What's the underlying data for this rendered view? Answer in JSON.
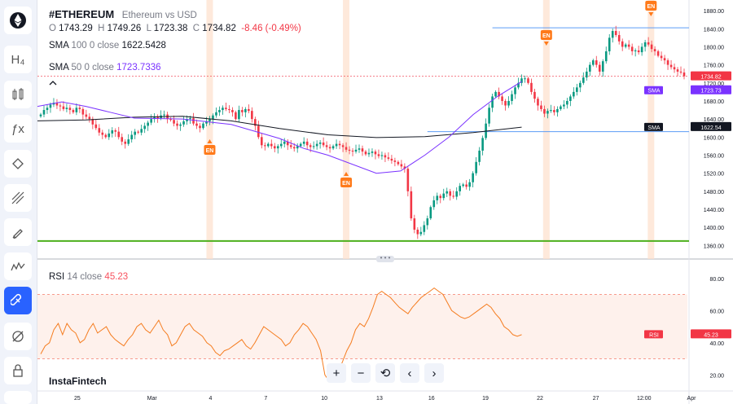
{
  "header": {
    "symbol": "#ETHEREUM",
    "description": "Ethereum vs USD",
    "open_label": "O",
    "open": "1743.29",
    "high_label": "H",
    "high": "1749.26",
    "low_label": "L",
    "low": "1723.38",
    "close_label": "C",
    "close": "1734.82",
    "change": "-8.46 (-0.49%)"
  },
  "indicators": {
    "sma100": {
      "name": "SMA",
      "params": "100 0 close",
      "value": "1622.5428"
    },
    "sma50": {
      "name": "SMA",
      "params": "50 0 close",
      "value": "1723.7336"
    },
    "rsi": {
      "name": "RSI",
      "params": "14 close",
      "value": "45.23"
    }
  },
  "price_tags": {
    "last": "1734.82",
    "sma50_label": "SMA",
    "sma50": "1723.73",
    "sma100_label": "SMA",
    "sma100": "1622.54",
    "rsi_label": "RSI",
    "rsi": "45.23"
  },
  "brand": "InstaFintech",
  "toolbar": {
    "icons": [
      "ethereum-logo-icon",
      "text-tool-icon",
      "indicators-icon",
      "formula-icon",
      "pattern-tool-icon",
      "fib-tool-icon",
      "brush-icon",
      "waves-icon",
      "magnet-icon",
      "eye-off-icon",
      "lock-icon",
      "more-icon"
    ]
  },
  "zoom_controls": {
    "zoom_in": "+",
    "zoom_out": "−",
    "reset": "⟲",
    "prev": "‹",
    "next": "›"
  },
  "colors": {
    "up": "#089981",
    "down": "#f23645",
    "sma100": "#131722",
    "sma50": "#7a32ff",
    "rsi": "#f57c1f",
    "support": "#4caf1d",
    "resistance": "#5b9cf6",
    "event": "#ff7a1a"
  },
  "chart_data": [
    {
      "type": "candlestick",
      "title": "#ETHEREUM Ethereum vs USD",
      "ylim": [
        1330,
        1900
      ],
      "yticks": [
        1360,
        1400,
        1440,
        1480,
        1520,
        1560,
        1600,
        1640,
        1680,
        1720,
        1760,
        1800,
        1840,
        1880
      ],
      "xticks": [
        "25",
        "Mar",
        "4",
        "7",
        "10",
        "13",
        "16",
        "19",
        "22",
        "27",
        "12:00",
        "Apr"
      ],
      "closes": [
        1650,
        1660,
        1665,
        1672,
        1676,
        1670,
        1668,
        1662,
        1665,
        1660,
        1655,
        1665,
        1662,
        1650,
        1645,
        1640,
        1628,
        1620,
        1610,
        1605,
        1600,
        1608,
        1615,
        1612,
        1600,
        1590,
        1585,
        1595,
        1605,
        1612,
        1610,
        1618,
        1625,
        1632,
        1640,
        1645,
        1642,
        1648,
        1650,
        1640,
        1638,
        1630,
        1625,
        1628,
        1635,
        1640,
        1642,
        1630,
        1625,
        1620,
        1630,
        1635,
        1640,
        1648,
        1655,
        1660,
        1665,
        1662,
        1660,
        1655,
        1640,
        1660,
        1655,
        1662,
        1658,
        1640,
        1625,
        1600,
        1582,
        1580,
        1585,
        1580,
        1575,
        1580,
        1585,
        1590,
        1582,
        1578,
        1575,
        1580,
        1585,
        1590,
        1582,
        1578,
        1580,
        1585,
        1588,
        1582,
        1578,
        1575,
        1580,
        1585,
        1582,
        1578,
        1572,
        1570,
        1568,
        1572,
        1575,
        1568,
        1562,
        1565,
        1568,
        1562,
        1558,
        1560,
        1555,
        1552,
        1548,
        1545,
        1540,
        1535,
        1530,
        1480,
        1420,
        1395,
        1385,
        1390,
        1405,
        1420,
        1445,
        1460,
        1470,
        1465,
        1475,
        1480,
        1470,
        1468,
        1480,
        1492,
        1495,
        1490,
        1500,
        1520,
        1545,
        1570,
        1598,
        1630,
        1665,
        1690,
        1700,
        1690,
        1680,
        1670,
        1680,
        1695,
        1710,
        1720,
        1730,
        1730,
        1720,
        1700,
        1685,
        1670,
        1662,
        1652,
        1658,
        1660,
        1655,
        1662,
        1668,
        1672,
        1680,
        1690,
        1700,
        1710,
        1720,
        1732,
        1745,
        1760,
        1770,
        1760,
        1745,
        1768,
        1790,
        1820,
        1835,
        1826,
        1812,
        1800,
        1805,
        1800,
        1790,
        1792,
        1788,
        1800,
        1810,
        1805,
        1795,
        1790,
        1780,
        1775,
        1770,
        1760,
        1755,
        1750,
        1745,
        1743,
        1735
      ],
      "bar_volatility": 12,
      "last": 1734.82,
      "sma_series": [
        {
          "name": "SMA 100",
          "color": "#131722",
          "x": [
            0,
            0.1,
            0.2,
            0.3,
            0.4,
            0.5,
            0.6,
            0.7,
            0.8,
            0.9,
            1
          ],
          "y": [
            1636,
            1638,
            1644,
            1646,
            1636,
            1619,
            1605,
            1599,
            1601,
            1610,
            1622
          ]
        },
        {
          "name": "SMA 50",
          "color": "#7a32ff",
          "x": [
            0,
            0.05,
            0.1,
            0.15,
            0.2,
            0.3,
            0.4,
            0.5,
            0.55,
            0.6,
            0.7,
            0.75,
            0.8,
            0.85,
            0.9,
            0.95,
            1
          ],
          "y": [
            1668,
            1678,
            1668,
            1655,
            1642,
            1640,
            1628,
            1597,
            1575,
            1560,
            1520,
            1525,
            1560,
            1600,
            1650,
            1690,
            1723
          ]
        }
      ],
      "support_level": 1370,
      "resistance_level": 1842,
      "event_markers": [
        {
          "x": 0.265,
          "label": "EN",
          "dir": "up"
        },
        {
          "x": 0.475,
          "label": "EN",
          "dir": "up"
        },
        {
          "x": 0.783,
          "label": "EN",
          "dir": "down"
        },
        {
          "x": 0.944,
          "label": "EN",
          "dir": "down"
        }
      ]
    },
    {
      "type": "line",
      "title": "RSI 14 close",
      "ylim": [
        10,
        90
      ],
      "yticks": [
        20,
        40,
        60,
        80
      ],
      "band": [
        30,
        70
      ],
      "values": [
        33,
        38,
        40,
        48,
        52,
        45,
        52,
        48,
        46,
        40,
        42,
        48,
        52,
        46,
        48,
        50,
        45,
        42,
        40,
        38,
        42,
        45,
        50,
        52,
        48,
        46,
        50,
        54,
        48,
        45,
        38,
        40,
        45,
        50,
        52,
        48,
        46,
        44,
        40,
        38,
        34,
        32,
        35,
        36,
        38,
        40,
        42,
        38,
        36,
        40,
        45,
        50,
        48,
        46,
        44,
        42,
        38,
        40,
        45,
        48,
        52,
        50,
        46,
        42,
        35,
        20,
        16,
        18,
        22,
        28,
        35,
        40,
        48,
        52,
        50,
        55,
        62,
        70,
        72,
        70,
        68,
        65,
        62,
        60,
        58,
        62,
        65,
        68,
        70,
        72,
        74,
        72,
        70,
        65,
        60,
        58,
        56,
        55,
        56,
        58,
        60,
        62,
        64,
        62,
        58,
        55,
        50,
        48,
        45,
        44,
        45
      ],
      "last": 45.23
    }
  ]
}
